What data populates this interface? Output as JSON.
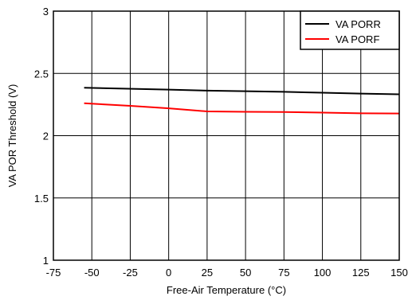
{
  "chart_data": {
    "type": "line",
    "xlabel": "Free-Air Temperature (°C)",
    "ylabel": "VA POR Threshold (V)",
    "xlim": [
      -75,
      150
    ],
    "ylim": [
      1,
      3
    ],
    "xticks": [
      -75,
      -50,
      -25,
      0,
      25,
      50,
      75,
      100,
      125,
      150
    ],
    "yticks": [
      1,
      1.5,
      2,
      2.5,
      3
    ],
    "xtick_labels": [
      "-75",
      "-50",
      "-25",
      "0",
      "25",
      "50",
      "75",
      "100",
      "125",
      "150"
    ],
    "ytick_labels": [
      "1",
      "1.5",
      "2",
      "2.5",
      "3"
    ],
    "grid": true,
    "legend_position": "top-right",
    "series": [
      {
        "name": "VA PORR",
        "color": "#000000",
        "x": [
          -55,
          0,
          25,
          50,
          75,
          100,
          125,
          150
        ],
        "y": [
          2.385,
          2.37,
          2.362,
          2.357,
          2.352,
          2.345,
          2.338,
          2.332
        ]
      },
      {
        "name": "VA PORF",
        "color": "#ff0000",
        "x": [
          -55,
          -25,
          0,
          25,
          50,
          75,
          100,
          125,
          150
        ],
        "y": [
          2.26,
          2.24,
          2.22,
          2.195,
          2.192,
          2.19,
          2.185,
          2.18,
          2.178
        ]
      }
    ]
  }
}
